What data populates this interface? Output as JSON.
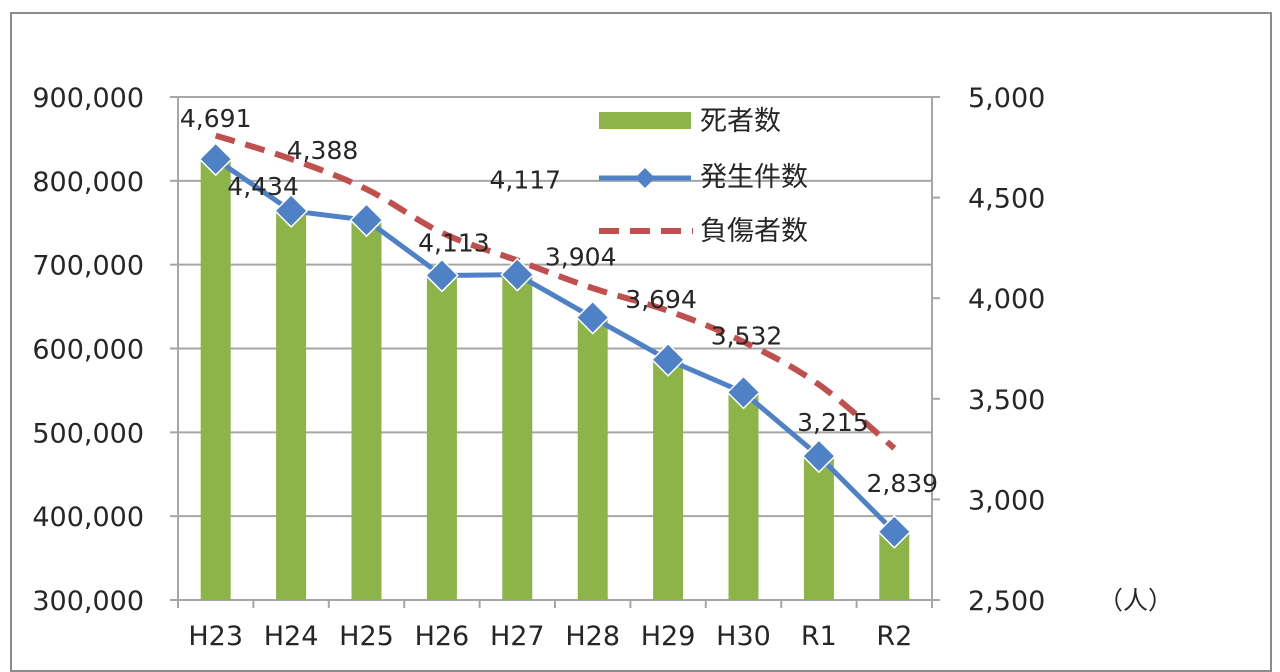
{
  "chart_data": {
    "type": "bar",
    "categories": [
      "H23",
      "H24",
      "H25",
      "H26",
      "H27",
      "H28",
      "H29",
      "H30",
      "R1",
      "R2"
    ],
    "series": [
      {
        "name": "死者数",
        "type": "bar",
        "axis": "left",
        "values": [
          826000,
          765000,
          754000,
          687000,
          689000,
          636000,
          587000,
          549000,
          472000,
          382000
        ]
      },
      {
        "name": "発生件数",
        "type": "line",
        "axis": "right",
        "marker": "diamond",
        "values": [
          4691,
          4434,
          4388,
          4113,
          4117,
          3904,
          3694,
          3532,
          3215,
          2839
        ],
        "labels": [
          "4,691",
          "4,434",
          "4,388",
          "4,113",
          "4,117",
          "3,904",
          "3,694",
          "3,532",
          "3,215",
          "2,839"
        ]
      },
      {
        "name": "負傷者数",
        "type": "line",
        "axis": "left",
        "dashed": true,
        "values": [
          854000,
          826000,
          790000,
          738000,
          705000,
          672000,
          645000,
          608000,
          557000,
          481000
        ]
      }
    ],
    "left_axis": {
      "ylim": [
        300000,
        900000
      ],
      "ticks": [
        "300,000",
        "400,000",
        "500,000",
        "600,000",
        "700,000",
        "800,000",
        "900,000"
      ]
    },
    "right_axis": {
      "ylim": [
        2500,
        5000
      ],
      "ticks": [
        "2,500",
        "3,000",
        "3,500",
        "4,000",
        "4,500",
        "5,000"
      ],
      "unit": "（人）"
    },
    "grid": true,
    "legend_position": "top-right",
    "colors": {
      "bar": "#8cb449",
      "line": "#4f81c7",
      "marker": "#4f81c7",
      "dashed": "#c0504d"
    }
  }
}
